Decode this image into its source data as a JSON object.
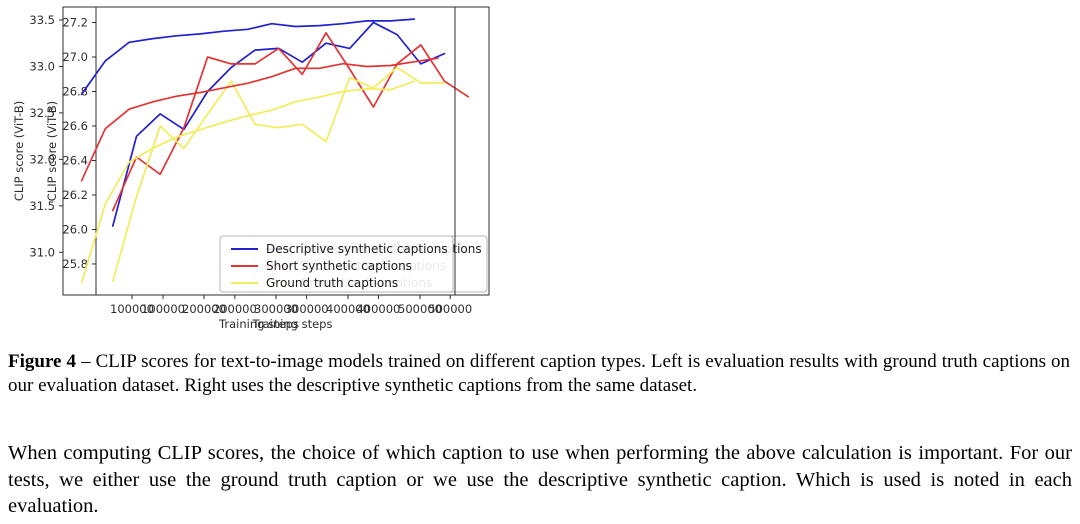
{
  "page": {
    "background": "#ffffff"
  },
  "colors": {
    "axis": "#2e2e2e",
    "descriptive": "#2121cd",
    "short": "#e23434",
    "ground_truth": "#f2ec5a",
    "legend_border": "#b5b5b5"
  },
  "figure_caption": {
    "label": "Figure 4",
    "text": "– CLIP scores for text-to-image models trained on different caption types. Left is evaluation results with ground truth captions on our evaluation dataset. Right uses the descriptive synthetic captions from the same dataset."
  },
  "paragraph": "When computing CLIP scores, the choice of which caption to use when performing the above calculation is important. For our tests, we either use the ground truth caption or we use the descriptive synthetic caption. Which is used is noted in each evaluation.",
  "chart_data": [
    {
      "type": "line",
      "title": "",
      "xlabel": "Training steps",
      "ylabel": "CLIP score (ViT-B)",
      "xlim": [
        6600,
        554000
      ],
      "ylim": [
        25.62,
        27.29
      ],
      "xticks": [
        100000,
        200000,
        300000,
        400000,
        500000
      ],
      "yticks": [
        25.8,
        26.0,
        26.2,
        26.4,
        26.6,
        26.8,
        27.0,
        27.2
      ],
      "grid": false,
      "legend_position": "lower right",
      "series": [
        {
          "name": "Descriptive synthetic captions",
          "color": "#2121cd",
          "x": [
            30000,
            63000,
            96000,
            129000,
            162000,
            195000,
            228000,
            261000,
            294000,
            327000,
            360000,
            393000,
            426000,
            459000,
            492000
          ],
          "y": [
            26.02,
            26.54,
            26.67,
            26.58,
            26.8,
            26.94,
            27.04,
            27.05,
            26.97,
            27.08,
            27.05,
            27.2,
            27.13,
            26.96,
            27.02
          ]
        },
        {
          "name": "Short synthetic captions",
          "color": "#e23434",
          "x": [
            30000,
            63000,
            96000,
            129000,
            162000,
            195000,
            228000,
            261000,
            294000,
            327000,
            360000,
            393000,
            426000,
            459000,
            492000,
            525000
          ],
          "y": [
            26.11,
            26.42,
            26.32,
            26.59,
            27.0,
            26.96,
            26.96,
            27.05,
            26.9,
            27.14,
            26.93,
            26.71,
            26.96,
            27.07,
            26.86,
            26.77
          ]
        },
        {
          "name": "Ground truth captions",
          "color": "#f2ec5a",
          "x": [
            30000,
            63000,
            96000,
            129000,
            162000,
            195000,
            228000,
            261000,
            294000,
            327000,
            360000,
            393000,
            426000,
            459000,
            492000
          ],
          "y": [
            25.7,
            26.19,
            26.6,
            26.47,
            26.67,
            26.86,
            26.61,
            26.59,
            26.61,
            26.51,
            26.88,
            26.82,
            26.94,
            26.85,
            26.85
          ]
        }
      ]
    },
    {
      "type": "line",
      "title": "",
      "xlabel": "Training steps",
      "ylabel": "CLIP score (ViT-B)",
      "xlim": [
        4200,
        548600
      ],
      "ylim": [
        30.54,
        33.64
      ],
      "xticks": [
        100000,
        200000,
        300000,
        400000,
        500000
      ],
      "yticks": [
        31.0,
        31.5,
        32.0,
        32.5,
        33.0,
        33.5
      ],
      "grid": false,
      "legend_position": "lower right",
      "series": [
        {
          "name": "Descriptive synthetic captions",
          "color": "#2121cd",
          "x": [
            30000,
            63000,
            96000,
            129000,
            162000,
            195000,
            228000,
            261000,
            294000,
            327000,
            360000,
            393000,
            426000,
            459000,
            492000
          ],
          "y": [
            32.7,
            33.06,
            33.26,
            33.3,
            33.33,
            33.35,
            33.38,
            33.4,
            33.46,
            33.43,
            33.44,
            33.46,
            33.49,
            33.49,
            33.51
          ]
        },
        {
          "name": "Short synthetic captions",
          "color": "#e23434",
          "x": [
            30000,
            63000,
            96000,
            129000,
            162000,
            195000,
            228000,
            261000,
            294000,
            327000,
            360000,
            393000,
            426000,
            459000,
            492000,
            525000
          ],
          "y": [
            31.77,
            32.33,
            32.54,
            32.62,
            32.68,
            32.72,
            32.77,
            32.82,
            32.89,
            32.98,
            32.98,
            33.03,
            33.0,
            33.01,
            33.05,
            33.09
          ]
        },
        {
          "name": "Ground truth captions",
          "color": "#f2ec5a",
          "x": [
            30000,
            63000,
            96000,
            129000,
            162000,
            195000,
            228000,
            261000,
            294000,
            327000,
            360000,
            393000,
            426000,
            459000,
            492000
          ],
          "y": [
            30.67,
            31.52,
            31.97,
            32.12,
            32.24,
            32.32,
            32.4,
            32.47,
            32.53,
            32.62,
            32.67,
            32.73,
            32.76,
            32.75,
            32.84
          ]
        }
      ]
    }
  ]
}
